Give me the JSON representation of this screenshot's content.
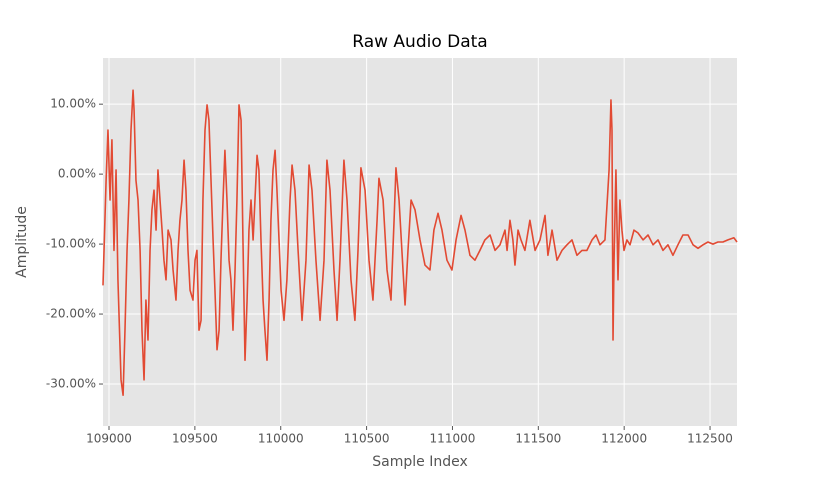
{
  "chart_data": {
    "type": "line",
    "title": "Raw Audio Data",
    "x_label": "Sample Index",
    "y_label": "Amplitude",
    "x": [
      108965,
      108983,
      108994,
      109006,
      109017,
      109029,
      109041,
      109052,
      109070,
      109082,
      109093,
      109105,
      109116,
      109128,
      109140,
      109146,
      109157,
      109169,
      109181,
      109192,
      109204,
      109215,
      109227,
      109239,
      109250,
      109262,
      109274,
      109285,
      109297,
      109309,
      109320,
      109332,
      109344,
      109361,
      109373,
      109390,
      109402,
      109413,
      109425,
      109437,
      109448,
      109460,
      109472,
      109489,
      109501,
      109512,
      109524,
      109536,
      109547,
      109559,
      109571,
      109582,
      109594,
      109606,
      109617,
      109629,
      109641,
      109652,
      109664,
      109675,
      109687,
      109699,
      109710,
      109722,
      109734,
      109745,
      109757,
      109769,
      109780,
      109792,
      109804,
      109815,
      109827,
      109839,
      109850,
      109862,
      109873,
      109885,
      109897,
      109908,
      109920,
      109932,
      109943,
      109955,
      109967,
      109978,
      109990,
      110002,
      110019,
      110036,
      110054,
      110066,
      110083,
      110101,
      110124,
      110147,
      110165,
      110182,
      110205,
      110229,
      110252,
      110269,
      110287,
      110310,
      110328,
      110345,
      110368,
      110386,
      110409,
      110432,
      110450,
      110467,
      110491,
      110514,
      110537,
      110561,
      110572,
      110596,
      110619,
      110642,
      110660,
      110671,
      110689,
      110712,
      110724,
      110741,
      110759,
      110782,
      110811,
      110840,
      110869,
      110892,
      110916,
      110939,
      110968,
      110997,
      111021,
      111050,
      111073,
      111102,
      111131,
      111160,
      111189,
      111219,
      111248,
      111277,
      111306,
      111318,
      111335,
      111352,
      111364,
      111382,
      111399,
      111422,
      111451,
      111481,
      111510,
      111539,
      111556,
      111580,
      111609,
      111638,
      111667,
      111696,
      111725,
      111754,
      111783,
      111813,
      111836,
      111859,
      111888,
      111912,
      111923,
      111929,
      111935,
      111941,
      111952,
      111964,
      111975,
      111987,
      111999,
      112016,
      112034,
      112057,
      112080,
      112110,
      112139,
      112168,
      112197,
      112226,
      112255,
      112284,
      112313,
      112342,
      112372,
      112401,
      112430,
      112459,
      112488,
      112517,
      112546,
      112575,
      112604,
      112639,
      112657
    ],
    "series": [
      {
        "color": "#e24a33",
        "values": [
          -15.9,
          -0.9,
          6.3,
          -3.7,
          4.9,
          -10.9,
          0.6,
          -15.1,
          -29.4,
          -31.6,
          -22.3,
          -10.9,
          -3.7,
          6.3,
          12.0,
          9.1,
          -0.9,
          -3.7,
          -10.9,
          -22.3,
          -29.4,
          -18.0,
          -23.7,
          -10.9,
          -5.1,
          -2.3,
          -8.0,
          0.6,
          -3.7,
          -8.0,
          -12.3,
          -15.1,
          -8.0,
          -9.4,
          -13.7,
          -18.0,
          -10.9,
          -6.6,
          -3.7,
          2.0,
          -2.3,
          -10.9,
          -16.6,
          -18.0,
          -12.3,
          -10.9,
          -22.3,
          -20.9,
          -3.7,
          6.3,
          9.9,
          7.7,
          -0.9,
          -9.4,
          -16.6,
          -25.1,
          -22.3,
          -12.3,
          -3.7,
          3.4,
          -3.7,
          -12.3,
          -15.1,
          -22.3,
          -13.7,
          -3.7,
          9.9,
          7.7,
          -9.4,
          -26.6,
          -18.0,
          -8.0,
          -3.7,
          -9.4,
          -3.7,
          2.7,
          0.6,
          -9.4,
          -18.0,
          -22.3,
          -26.6,
          -18.0,
          -6.6,
          0.6,
          3.4,
          -2.3,
          -9.4,
          -16.6,
          -20.9,
          -15.1,
          -3.7,
          1.3,
          -2.3,
          -10.9,
          -20.9,
          -12.3,
          1.3,
          -2.3,
          -12.3,
          -20.9,
          -12.3,
          2.0,
          -2.3,
          -13.7,
          -20.9,
          -12.3,
          2.0,
          -3.7,
          -15.1,
          -20.9,
          -10.9,
          0.9,
          -2.3,
          -12.3,
          -18.0,
          -6.6,
          -0.6,
          -3.7,
          -13.7,
          -18.0,
          -6.6,
          0.9,
          -3.7,
          -13.7,
          -18.7,
          -10.9,
          -3.7,
          -5.1,
          -9.4,
          -13.0,
          -13.7,
          -8.0,
          -5.6,
          -8.0,
          -12.3,
          -13.7,
          -9.4,
          -5.9,
          -8.0,
          -11.6,
          -12.3,
          -10.9,
          -9.4,
          -8.7,
          -10.9,
          -10.1,
          -8.0,
          -10.9,
          -6.6,
          -9.4,
          -13.0,
          -8.0,
          -9.4,
          -10.9,
          -6.6,
          -10.9,
          -9.4,
          -5.9,
          -11.6,
          -8.0,
          -12.3,
          -10.9,
          -10.1,
          -9.4,
          -11.6,
          -10.9,
          -10.9,
          -9.4,
          -8.7,
          -10.1,
          -9.4,
          0.6,
          10.6,
          6.3,
          -23.7,
          -12.3,
          0.6,
          -15.1,
          -3.7,
          -8.0,
          -10.9,
          -9.4,
          -10.1,
          -8.0,
          -8.4,
          -9.4,
          -8.7,
          -10.1,
          -9.4,
          -10.9,
          -10.1,
          -11.6,
          -10.1,
          -8.7,
          -8.7,
          -10.1,
          -10.6,
          -10.1,
          -9.7,
          -10.0,
          -9.7,
          -9.7,
          -9.4,
          -9.1,
          -9.7
        ]
      }
    ],
    "xlim": [
      108965,
      112657
    ],
    "ylim": [
      -36,
      16.6
    ],
    "xticks": [
      109000,
      109500,
      110000,
      110500,
      111000,
      111500,
      112000,
      112500
    ],
    "yticks": [
      {
        "value": -30,
        "label": "-30.00%"
      },
      {
        "value": -20,
        "label": "-20.00%"
      },
      {
        "value": -10,
        "label": "-10.00%"
      },
      {
        "value": 0,
        "label": "0.00%"
      },
      {
        "value": 10,
        "label": "10.00%"
      }
    ],
    "grid": true
  }
}
